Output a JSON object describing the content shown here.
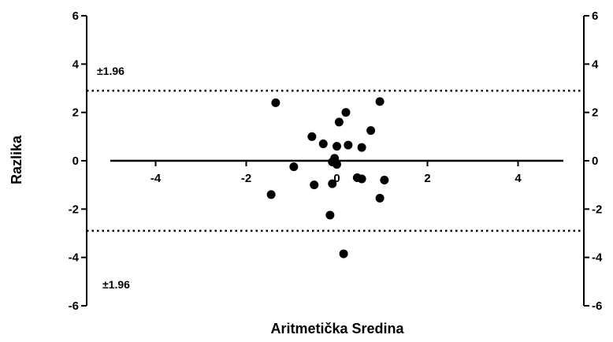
{
  "chart_data": {
    "type": "scatter",
    "xlabel": "Aritmetička Sredina",
    "ylabel": "Razlika",
    "xlim": [
      -5,
      5
    ],
    "ylim": [
      -6,
      6
    ],
    "x_ticks": [
      -4,
      -2,
      0,
      2,
      4
    ],
    "x_tick_labels": [
      "-4",
      "-2",
      "0",
      "2",
      "4"
    ],
    "y_ticks": [
      -6,
      -4,
      -2,
      0,
      2,
      4,
      6
    ],
    "y_tick_labels": [
      "-6",
      "-4",
      "-2",
      "0",
      "2",
      "4",
      "6"
    ],
    "mean_line": 0,
    "limits_of_agreement": [
      2.9,
      -2.9
    ],
    "upper_limit_label": "±1.96",
    "lower_limit_label": "±1.96",
    "grid": false,
    "points": [
      {
        "x": -1.35,
        "y": 2.4
      },
      {
        "x": 0.95,
        "y": 2.45
      },
      {
        "x": 0.2,
        "y": 2.0
      },
      {
        "x": 0.05,
        "y": 1.6
      },
      {
        "x": 0.75,
        "y": 1.25
      },
      {
        "x": -0.55,
        "y": 1.0
      },
      {
        "x": -0.3,
        "y": 0.7
      },
      {
        "x": 0.25,
        "y": 0.65
      },
      {
        "x": 0.0,
        "y": 0.6
      },
      {
        "x": 0.55,
        "y": 0.55
      },
      {
        "x": -0.05,
        "y": 0.1
      },
      {
        "x": -0.1,
        "y": -0.05
      },
      {
        "x": 0.0,
        "y": -0.15
      },
      {
        "x": -0.95,
        "y": -0.25
      },
      {
        "x": 0.45,
        "y": -0.7
      },
      {
        "x": 0.55,
        "y": -0.75
      },
      {
        "x": 1.05,
        "y": -0.8
      },
      {
        "x": -0.1,
        "y": -0.95
      },
      {
        "x": -0.5,
        "y": -1.0
      },
      {
        "x": -1.45,
        "y": -1.4
      },
      {
        "x": 0.95,
        "y": -1.55
      },
      {
        "x": -0.15,
        "y": -2.25
      },
      {
        "x": 0.15,
        "y": -3.85
      }
    ]
  }
}
